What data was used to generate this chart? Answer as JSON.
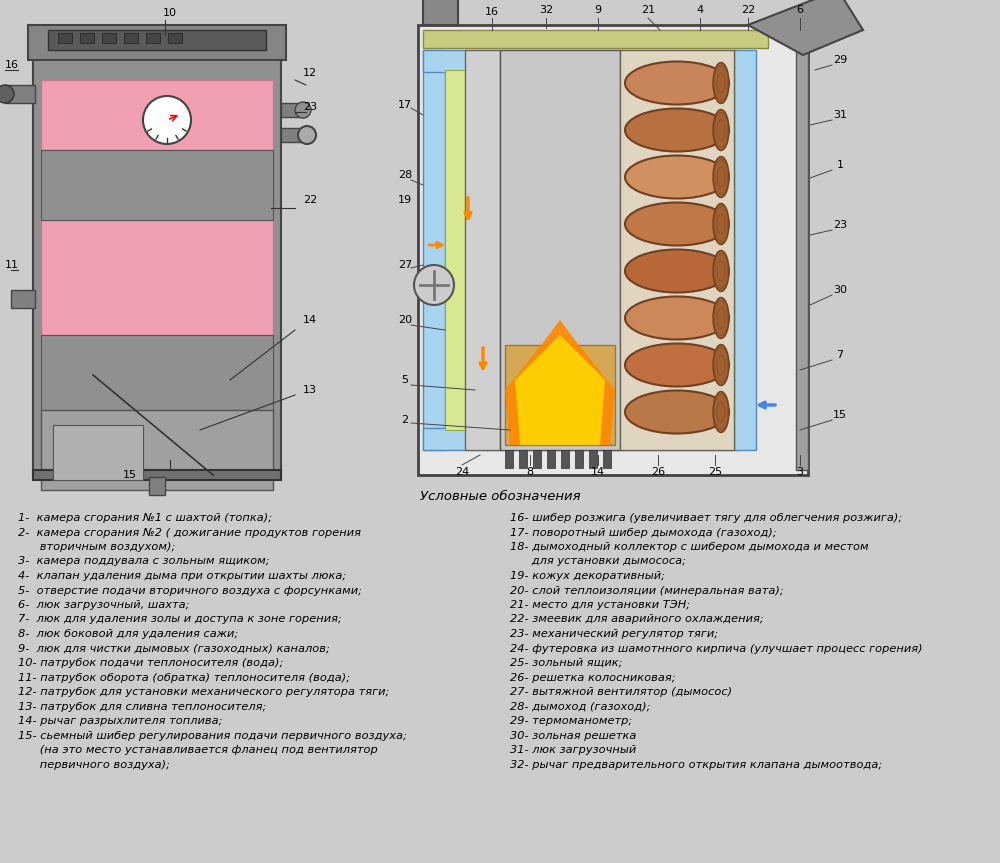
{
  "bg_color": "#cccccc",
  "title_legend": "Условные обозначения",
  "legend_left": [
    "1-  камера сгорания №1 с шахтой (топка);",
    "2-  камера сгорания №2 ( дожигание продуктов горения",
    "      вторичным воздухом);",
    "3-  камера поддувала с зольным ящиком;",
    "4-  клапан удаления дыма при открытии шахты люка;",
    "5-  отверстие подачи вторичного воздуха с форсунками;",
    "6-  люк загрузочный, шахта;",
    "7-  люк для удаления золы и доступа к зоне горения;",
    "8-  люк боковой для удаления сажи;",
    "9-  люк для чистки дымовых (газоходных) каналов;",
    "10- патрубок подачи теплоносителя (вода);",
    "11- патрубок оборота (обратка) теплоносителя (вода);",
    "12- патрубок для установки механического регулятора тяги;",
    "13- патрубок для сливна теплоносителя;",
    "14- рычаг разрыхлителя топлива;",
    "15- сьемный шибер регулирования подачи первичного воздуха;",
    "      (на это место устанавливается фланец под вентилятор",
    "      первичного воздуха);"
  ],
  "legend_right": [
    "16- шибер розжига (увеличивает тягу для облегчения розжига);",
    "17- поворотный шибер дымохода (газоход);",
    "18- дымоходный коллектор с шибером дымохода и местом",
    "      для установки дымососа;",
    "19- кожух декоративный;",
    "20- слой теплоизоляции (минеральная вата);",
    "21- место для установки ТЭН;",
    "22- змеевик для аварийного охлаждения;",
    "23- механический регулятор тяги;",
    "24- футеровка из шамотнного кирпича (улучшает процесс горения)",
    "25- зольный ящик;",
    "26- решетка колосниковая;",
    "27- вытяжной вентилятор (дымосос)",
    "28- дымоход (газоход);",
    "29- термоманометр;",
    "30- зольная решетка",
    "31- люк загрузочный",
    "32- рычаг предварительного открытия клапана дымоотвода;"
  ],
  "font_size_legend": 8.2,
  "font_size_title": 9.5
}
